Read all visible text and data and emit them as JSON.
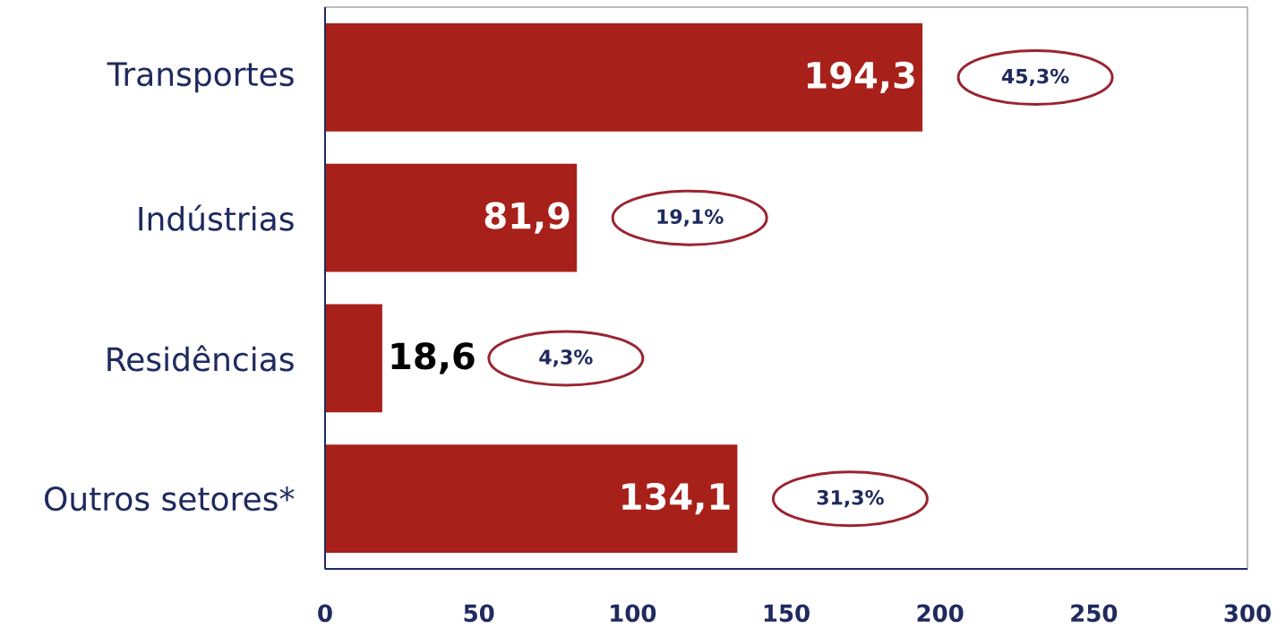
{
  "chart_data": {
    "type": "bar",
    "orientation": "horizontal",
    "categories": [
      "Transportes",
      "Indústrias",
      "Residências",
      "Outros setores*"
    ],
    "values": [
      194.3,
      81.9,
      18.6,
      134.1
    ],
    "color": "#a8201a",
    "value_labels": [
      "194,3",
      "81,9",
      "18,6",
      "134,1"
    ],
    "xlim": [
      0,
      300
    ],
    "xticks": [
      0,
      50,
      100,
      150,
      200,
      250,
      300
    ],
    "grid": false,
    "annotations": [
      "45,3%",
      "19,1%",
      "4,3%",
      "31,3%"
    ]
  }
}
